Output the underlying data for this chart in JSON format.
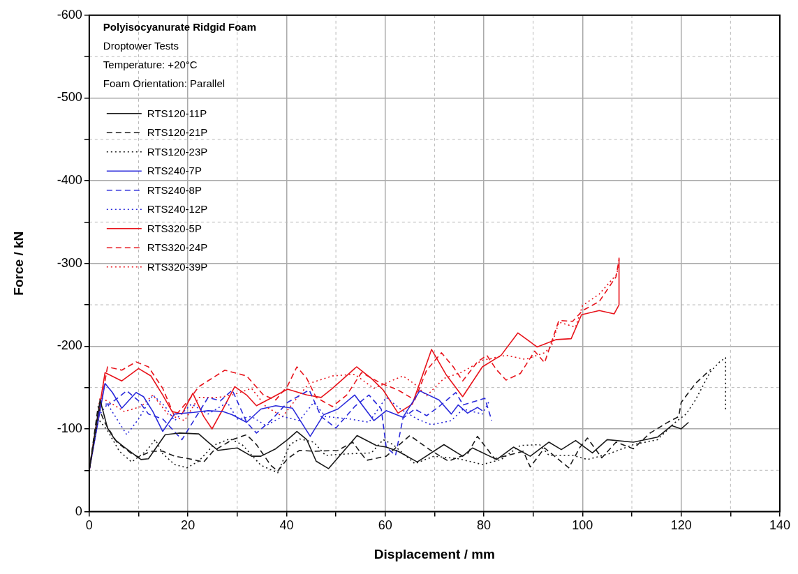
{
  "chart_data": {
    "type": "line",
    "title": "Polyisocyanurate Ridgid Foam",
    "subtitle": "Droptower Tests",
    "annotations": [
      "Temperature: +20°C",
      "Foam Orientation: Parallel"
    ],
    "xlabel": "Displacement / mm",
    "ylabel": "Force / kN",
    "xlim": [
      0,
      140
    ],
    "xticks": [
      0,
      {
        "value": 10,
        "label": null
      },
      20,
      {
        "value": 30,
        "label": null
      },
      40,
      {
        "value": 50,
        "label": null
      },
      60,
      {
        "value": 70,
        "label": null
      },
      80,
      {
        "value": 90,
        "label": null
      },
      100,
      {
        "value": 110,
        "label": null
      },
      120,
      {
        "value": 130,
        "label": null
      },
      140
    ],
    "ylim": [
      0,
      -600
    ],
    "yticks": [
      0,
      {
        "value": -50,
        "label": null
      },
      -100,
      {
        "value": -150,
        "label": null
      },
      -200,
      {
        "value": -250,
        "label": null
      },
      -300,
      {
        "value": -350,
        "label": null
      },
      -400,
      {
        "value": -450,
        "label": null
      },
      -500,
      {
        "value": -550,
        "label": null
      },
      -600
    ],
    "grid": true,
    "legend": "top left",
    "marker": "none",
    "series": [
      {
        "name": "RTS120-11P",
        "color": "#1a1a1a",
        "line_style": "solid",
        "x": [
          0,
          2.2,
          3.7,
          5.2,
          7.1,
          10.5,
          12,
          13.4,
          15.4,
          18.3,
          22.2,
          24.1,
          26.1,
          30,
          32.9,
          34.8,
          37.8,
          40.2,
          42.1,
          44.1,
          46,
          48.5,
          54.3,
          58.2,
          60.2,
          62.6,
          66.5,
          71.9,
          75.7,
          77.7,
          82.6,
          86,
          89.4,
          93.2,
          95.7,
          98.6,
          102,
          105,
          110.3,
          115.2,
          118.1,
          120,
          121.5
        ],
        "values": [
          -50,
          -135,
          -101,
          -87,
          -78,
          -63,
          -64,
          -76,
          -93,
          -95,
          -94,
          -84,
          -74,
          -77,
          -67,
          -67,
          -76,
          -87,
          -97,
          -87,
          -61,
          -52,
          -92,
          -80,
          -78,
          -73,
          -60,
          -81,
          -67,
          -77,
          -63,
          -78,
          -67,
          -84,
          -75,
          -86,
          -71,
          -87,
          -84,
          -90,
          -104,
          -100,
          -108
        ]
      },
      {
        "name": "RTS120-21P",
        "color": "#1a1a1a",
        "line_style": "dashed",
        "x": [
          0,
          1.8,
          3.2,
          5.6,
          8.6,
          10,
          12.5,
          14.9,
          17.3,
          20.2,
          23.2,
          25.1,
          29,
          31.9,
          33.9,
          36.8,
          38.2,
          40.2,
          42.6,
          45.5,
          50.4,
          53.4,
          56.2,
          60.2,
          65,
          69,
          72.8,
          76.7,
          78.7,
          82.2,
          88,
          89.4,
          92.3,
          97.2,
          99.5,
          101,
          103.9,
          106.8,
          110.3,
          113.7,
          117,
          119.5,
          120,
          122.9,
          124.9,
          126
        ],
        "values": [
          -50,
          -127,
          -107,
          -84,
          -70,
          -66,
          -73,
          -73,
          -67,
          -64,
          -60,
          -73,
          -87,
          -93,
          -81,
          -56,
          -49,
          -64,
          -74,
          -73,
          -74,
          -84,
          -62,
          -67,
          -92,
          -75,
          -61,
          -70,
          -91,
          -64,
          -73,
          -54,
          -77,
          -53,
          -78,
          -89,
          -65,
          -84,
          -76,
          -95,
          -107,
          -115,
          -132,
          -155,
          -166,
          -172
        ]
      },
      {
        "name": "RTS120-23P",
        "color": "#1a1a1a",
        "line_style": "dotted",
        "x": [
          0,
          1.8,
          3.7,
          6.1,
          8.6,
          11.5,
          13.4,
          14.9,
          17.3,
          19.8,
          22.2,
          25.1,
          28.5,
          31,
          34.8,
          38.2,
          40.7,
          42.6,
          45.5,
          47.9,
          52.8,
          57.2,
          59.6,
          61.6,
          66,
          69.9,
          74.8,
          79.7,
          83.5,
          87.4,
          91.3,
          93.2,
          98,
          101,
          105.4,
          110.3,
          115.2,
          118.6,
          121,
          122.9,
          125.9,
          127.8,
          129,
          129
        ],
        "values": [
          -50,
          -112,
          -98,
          -73,
          -60,
          -73,
          -87,
          -70,
          -57,
          -53,
          -61,
          -80,
          -88,
          -81,
          -56,
          -47,
          -81,
          -88,
          -84,
          -68,
          -70,
          -71,
          -87,
          -81,
          -58,
          -67,
          -64,
          -57,
          -63,
          -80,
          -81,
          -68,
          -68,
          -63,
          -70,
          -81,
          -87,
          -107,
          -118,
          -135,
          -169,
          -181,
          -186,
          -122
        ]
      },
      {
        "name": "RTS240-7P",
        "color": "#2b2bdb",
        "line_style": "solid",
        "x": [
          0,
          3.2,
          4.7,
          6.6,
          9.5,
          11,
          12.9,
          14.9,
          17.3,
          21.2,
          24.1,
          27.1,
          29,
          31.9,
          34.8,
          37.8,
          41.2,
          43.1,
          44.8,
          47.5,
          50.4,
          53.8,
          57.7,
          60.2,
          63.6,
          67,
          70.9,
          73.4,
          74.8,
          76.7,
          78.7,
          79.7
        ],
        "values": [
          -50,
          -155,
          -144,
          -125,
          -144,
          -139,
          -121,
          -97,
          -118,
          -120,
          -122,
          -121,
          -117,
          -108,
          -124,
          -128,
          -125,
          -107,
          -91,
          -117,
          -124,
          -141,
          -110,
          -122,
          -114,
          -146,
          -135,
          -118,
          -129,
          -119,
          -126,
          -122
        ]
      },
      {
        "name": "RTS240-8P",
        "color": "#2b2bdb",
        "line_style": "dashed",
        "x": [
          0,
          2.2,
          4.2,
          7.6,
          10,
          12,
          14.9,
          18.8,
          21.7,
          24.1,
          26.6,
          29,
          31.9,
          33.9,
          36.8,
          40.2,
          44.6,
          47,
          50,
          53.8,
          56.7,
          59.2,
          60.2,
          62.1,
          63.6,
          66,
          68.4,
          70.9,
          74.3,
          75.8,
          80.2,
          81.6
        ],
        "values": [
          -50,
          -130,
          -130,
          -146,
          -134,
          -118,
          -112,
          -87,
          -115,
          -138,
          -134,
          -147,
          -108,
          -95,
          -110,
          -132,
          -147,
          -115,
          -101,
          -127,
          -141,
          -124,
          -78,
          -68,
          -113,
          -124,
          -116,
          -127,
          -144,
          -129,
          -137,
          -110
        ]
      },
      {
        "name": "RTS240-12P",
        "color": "#2b2bdb",
        "line_style": "dotted",
        "x": [
          0,
          1.8,
          3.7,
          7.6,
          10,
          12.9,
          15.4,
          17.3,
          20.7,
          24.1,
          28,
          30,
          32.9,
          35.8,
          39.2,
          42.6,
          45.5,
          47.9,
          52.8,
          56.7,
          60.2,
          63.1,
          66.5,
          69.4,
          73.4,
          75.8,
          79.7,
          81.2
        ],
        "values": [
          -50,
          -115,
          -130,
          -93,
          -112,
          -141,
          -127,
          -110,
          -130,
          -118,
          -132,
          -112,
          -115,
          -104,
          -115,
          -110,
          -132,
          -115,
          -112,
          -108,
          -138,
          -124,
          -112,
          -105,
          -110,
          -124,
          -118,
          -135
        ]
      },
      {
        "name": "RTS320-5P",
        "color": "#e8141c",
        "line_style": "solid",
        "x": [
          0,
          3.2,
          6.6,
          10,
          12.5,
          14.9,
          16.8,
          18.8,
          21,
          23.2,
          24.9,
          27.1,
          29.5,
          31.9,
          33.9,
          36.8,
          40.2,
          44.1,
          47,
          49.3,
          54.2,
          57.2,
          59.6,
          62.6,
          65.5,
          69.4,
          72.3,
          75.7,
          79.7,
          83.5,
          86.9,
          90.8,
          94.7,
          97.7,
          99.8,
          103.4,
          106.4,
          107.4,
          107.4
        ],
        "values": [
          -50,
          -168,
          -158,
          -173,
          -164,
          -141,
          -121,
          -118,
          -143,
          -115,
          -100,
          -124,
          -151,
          -141,
          -128,
          -137,
          -148,
          -141,
          -138,
          -149,
          -175,
          -161,
          -147,
          -119,
          -130,
          -196,
          -166,
          -139,
          -175,
          -189,
          -216,
          -199,
          -208,
          -209,
          -238,
          -243,
          -239,
          -250,
          -307
        ]
      },
      {
        "name": "RTS320-24P",
        "color": "#e8141c",
        "line_style": "dashed",
        "x": [
          0,
          3.7,
          6.6,
          9.5,
          12,
          14.9,
          17.3,
          20.2,
          22.2,
          27.5,
          31.9,
          35.3,
          37.8,
          40.2,
          42.1,
          44.1,
          46,
          49.3,
          52.2,
          55.2,
          59.2,
          62.6,
          66,
          68.4,
          71.4,
          73.8,
          75.7,
          78.7,
          80.6,
          82.5,
          84.5,
          87.4,
          90.3,
          92.3,
          95.2,
          98,
          100,
          103.4,
          106.8,
          107.4
        ],
        "values": [
          -50,
          -175,
          -171,
          -181,
          -175,
          -149,
          -115,
          -135,
          -151,
          -171,
          -164,
          -141,
          -135,
          -152,
          -175,
          -161,
          -138,
          -127,
          -141,
          -168,
          -155,
          -147,
          -135,
          -171,
          -192,
          -175,
          -158,
          -181,
          -189,
          -172,
          -159,
          -167,
          -194,
          -180,
          -231,
          -230,
          -243,
          -254,
          -284,
          -305
        ]
      },
      {
        "name": "RTS320-39P",
        "color": "#e8141c",
        "line_style": "dotted",
        "x": [
          0,
          2.2,
          4.2,
          7.1,
          10.5,
          12.9,
          15.9,
          19.3,
          22.2,
          26.1,
          29,
          32.9,
          35.8,
          39.2,
          42.6,
          44.6,
          49.3,
          53.8,
          57.7,
          61.2,
          63.6,
          66,
          68.4,
          71.9,
          75.7,
          79.7,
          84.5,
          88.4,
          92.3,
          93.7,
          95.2,
          98.6,
          100,
          103.4,
          106.8,
          107.4
        ],
        "values": [
          -50,
          -138,
          -132,
          -121,
          -127,
          -141,
          -118,
          -110,
          -138,
          -138,
          -141,
          -149,
          -127,
          -115,
          -141,
          -155,
          -164,
          -166,
          -149,
          -158,
          -164,
          -154,
          -140,
          -161,
          -169,
          -183,
          -189,
          -184,
          -192,
          -200,
          -229,
          -223,
          -249,
          -263,
          -286,
          -297
        ]
      }
    ]
  }
}
